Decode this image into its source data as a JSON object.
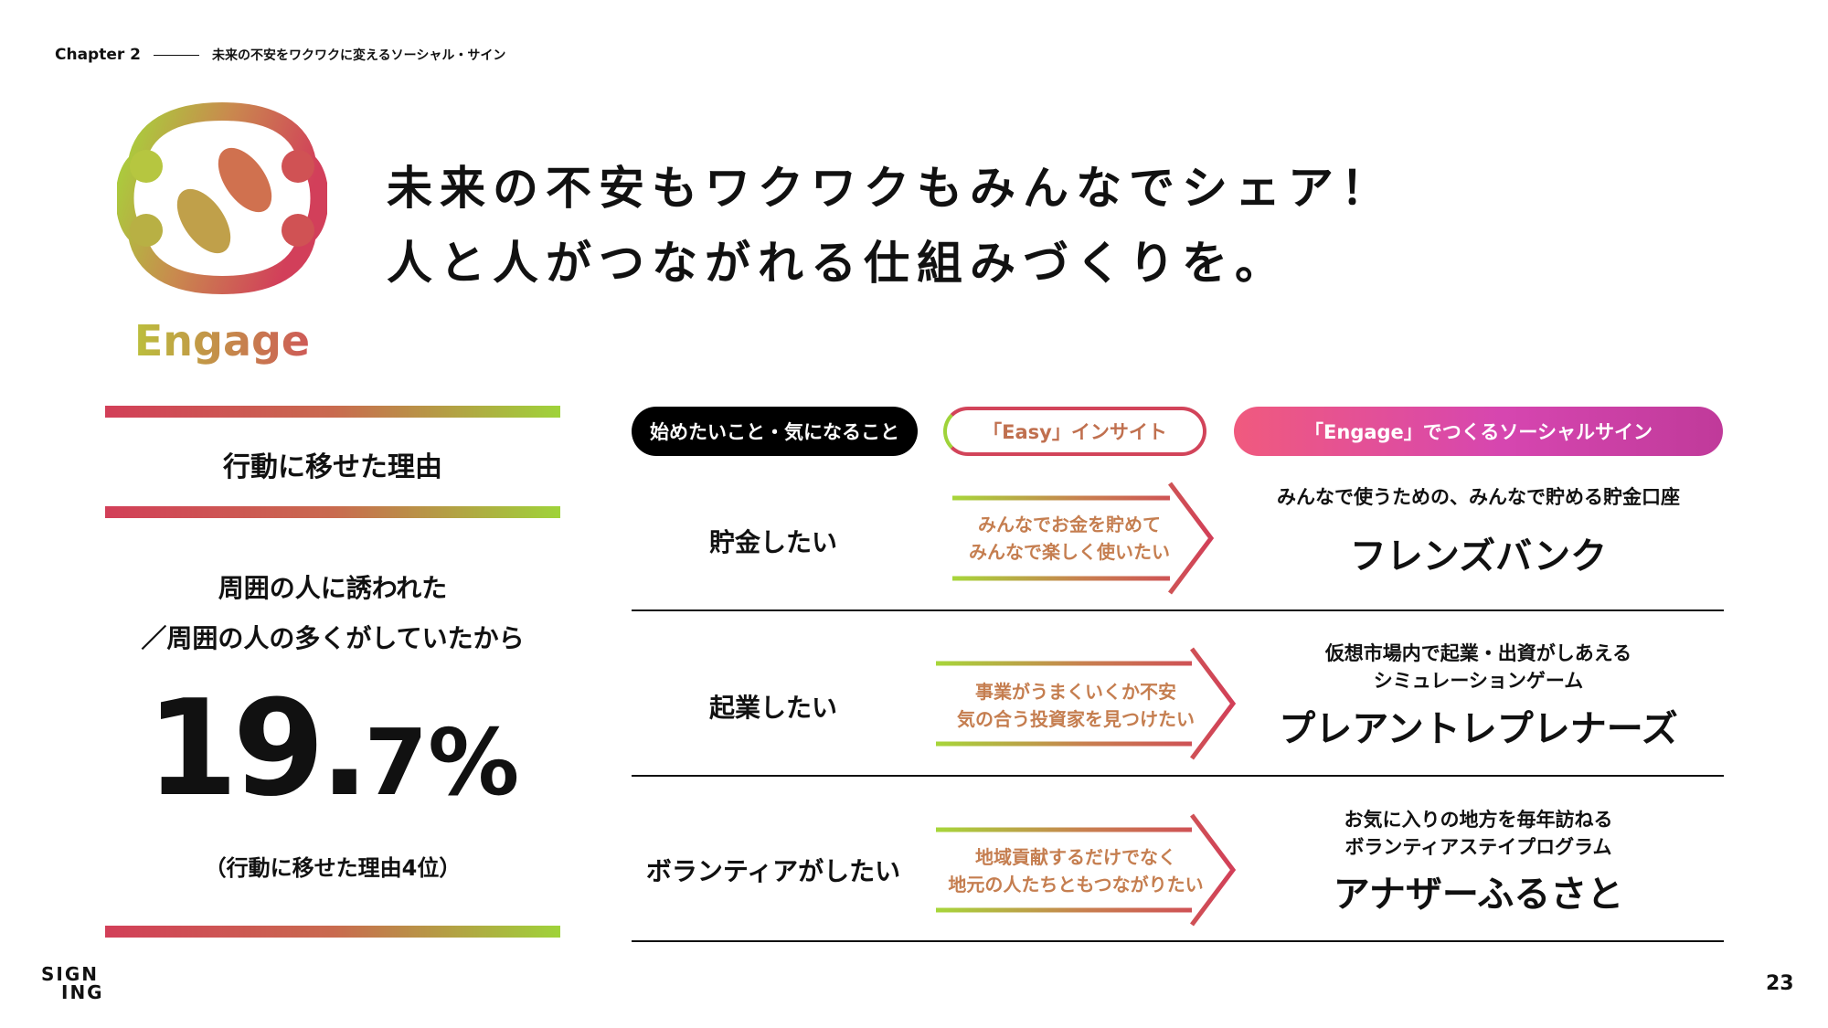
{
  "header": {
    "chapter": "Chapter 2",
    "chapter_title": "未来の不安をワクワクに変えるソーシャル・サイン"
  },
  "logo": {
    "word": "Engage",
    "icon": "engage-fish-icon"
  },
  "headline": {
    "line1": "未来の不安もワクワクもみんなでシェア！",
    "line2": "人と人がつながれる仕組みづくりを。"
  },
  "left_panel": {
    "heading": "行動に移せた理由",
    "reason_line1": "周囲の人に誘われた",
    "reason_line2": "／周囲の人の多くがしていたから",
    "stat_int": "19.",
    "stat_dec": "7%",
    "rank_note": "（行動に移せた理由4位）"
  },
  "table": {
    "headers": [
      "始めたいこと・気になること",
      "「Easy」インサイト",
      "「Engage」でつくるソーシャルサイン"
    ],
    "rows": [
      {
        "want": "貯金したい",
        "insight": [
          "みんなでお金を貯めて",
          "みんなで楽しく使いたい"
        ],
        "sign_desc": [
          "みんなで使うための、みんなで貯める貯金口座"
        ],
        "sign_name": "フレンズバンク"
      },
      {
        "want": "起業したい",
        "insight": [
          "事業がうまくいくか不安",
          "気の合う投資家を見つけたい"
        ],
        "sign_desc": [
          "仮想市場内で起業・出資がしあえる",
          "シミュレーションゲーム"
        ],
        "sign_name": "プレアントレプレナーズ"
      },
      {
        "want": "ボランティアがしたい",
        "insight": [
          "地域貢献するだけでなく",
          "地元の人たちともつながりたい"
        ],
        "sign_desc": [
          "お気に入りの地方を毎年訪ねる",
          "ボランティアステイプログラム"
        ],
        "sign_name": "アナザーふるさと"
      }
    ]
  },
  "footer": {
    "brand_line1": "SIGN",
    "brand_line2": "ING",
    "page_number": "23"
  },
  "colors": {
    "accent_red": "#d2445a",
    "accent_green": "#9fd33a",
    "accent_magenta": "#d646b0"
  }
}
